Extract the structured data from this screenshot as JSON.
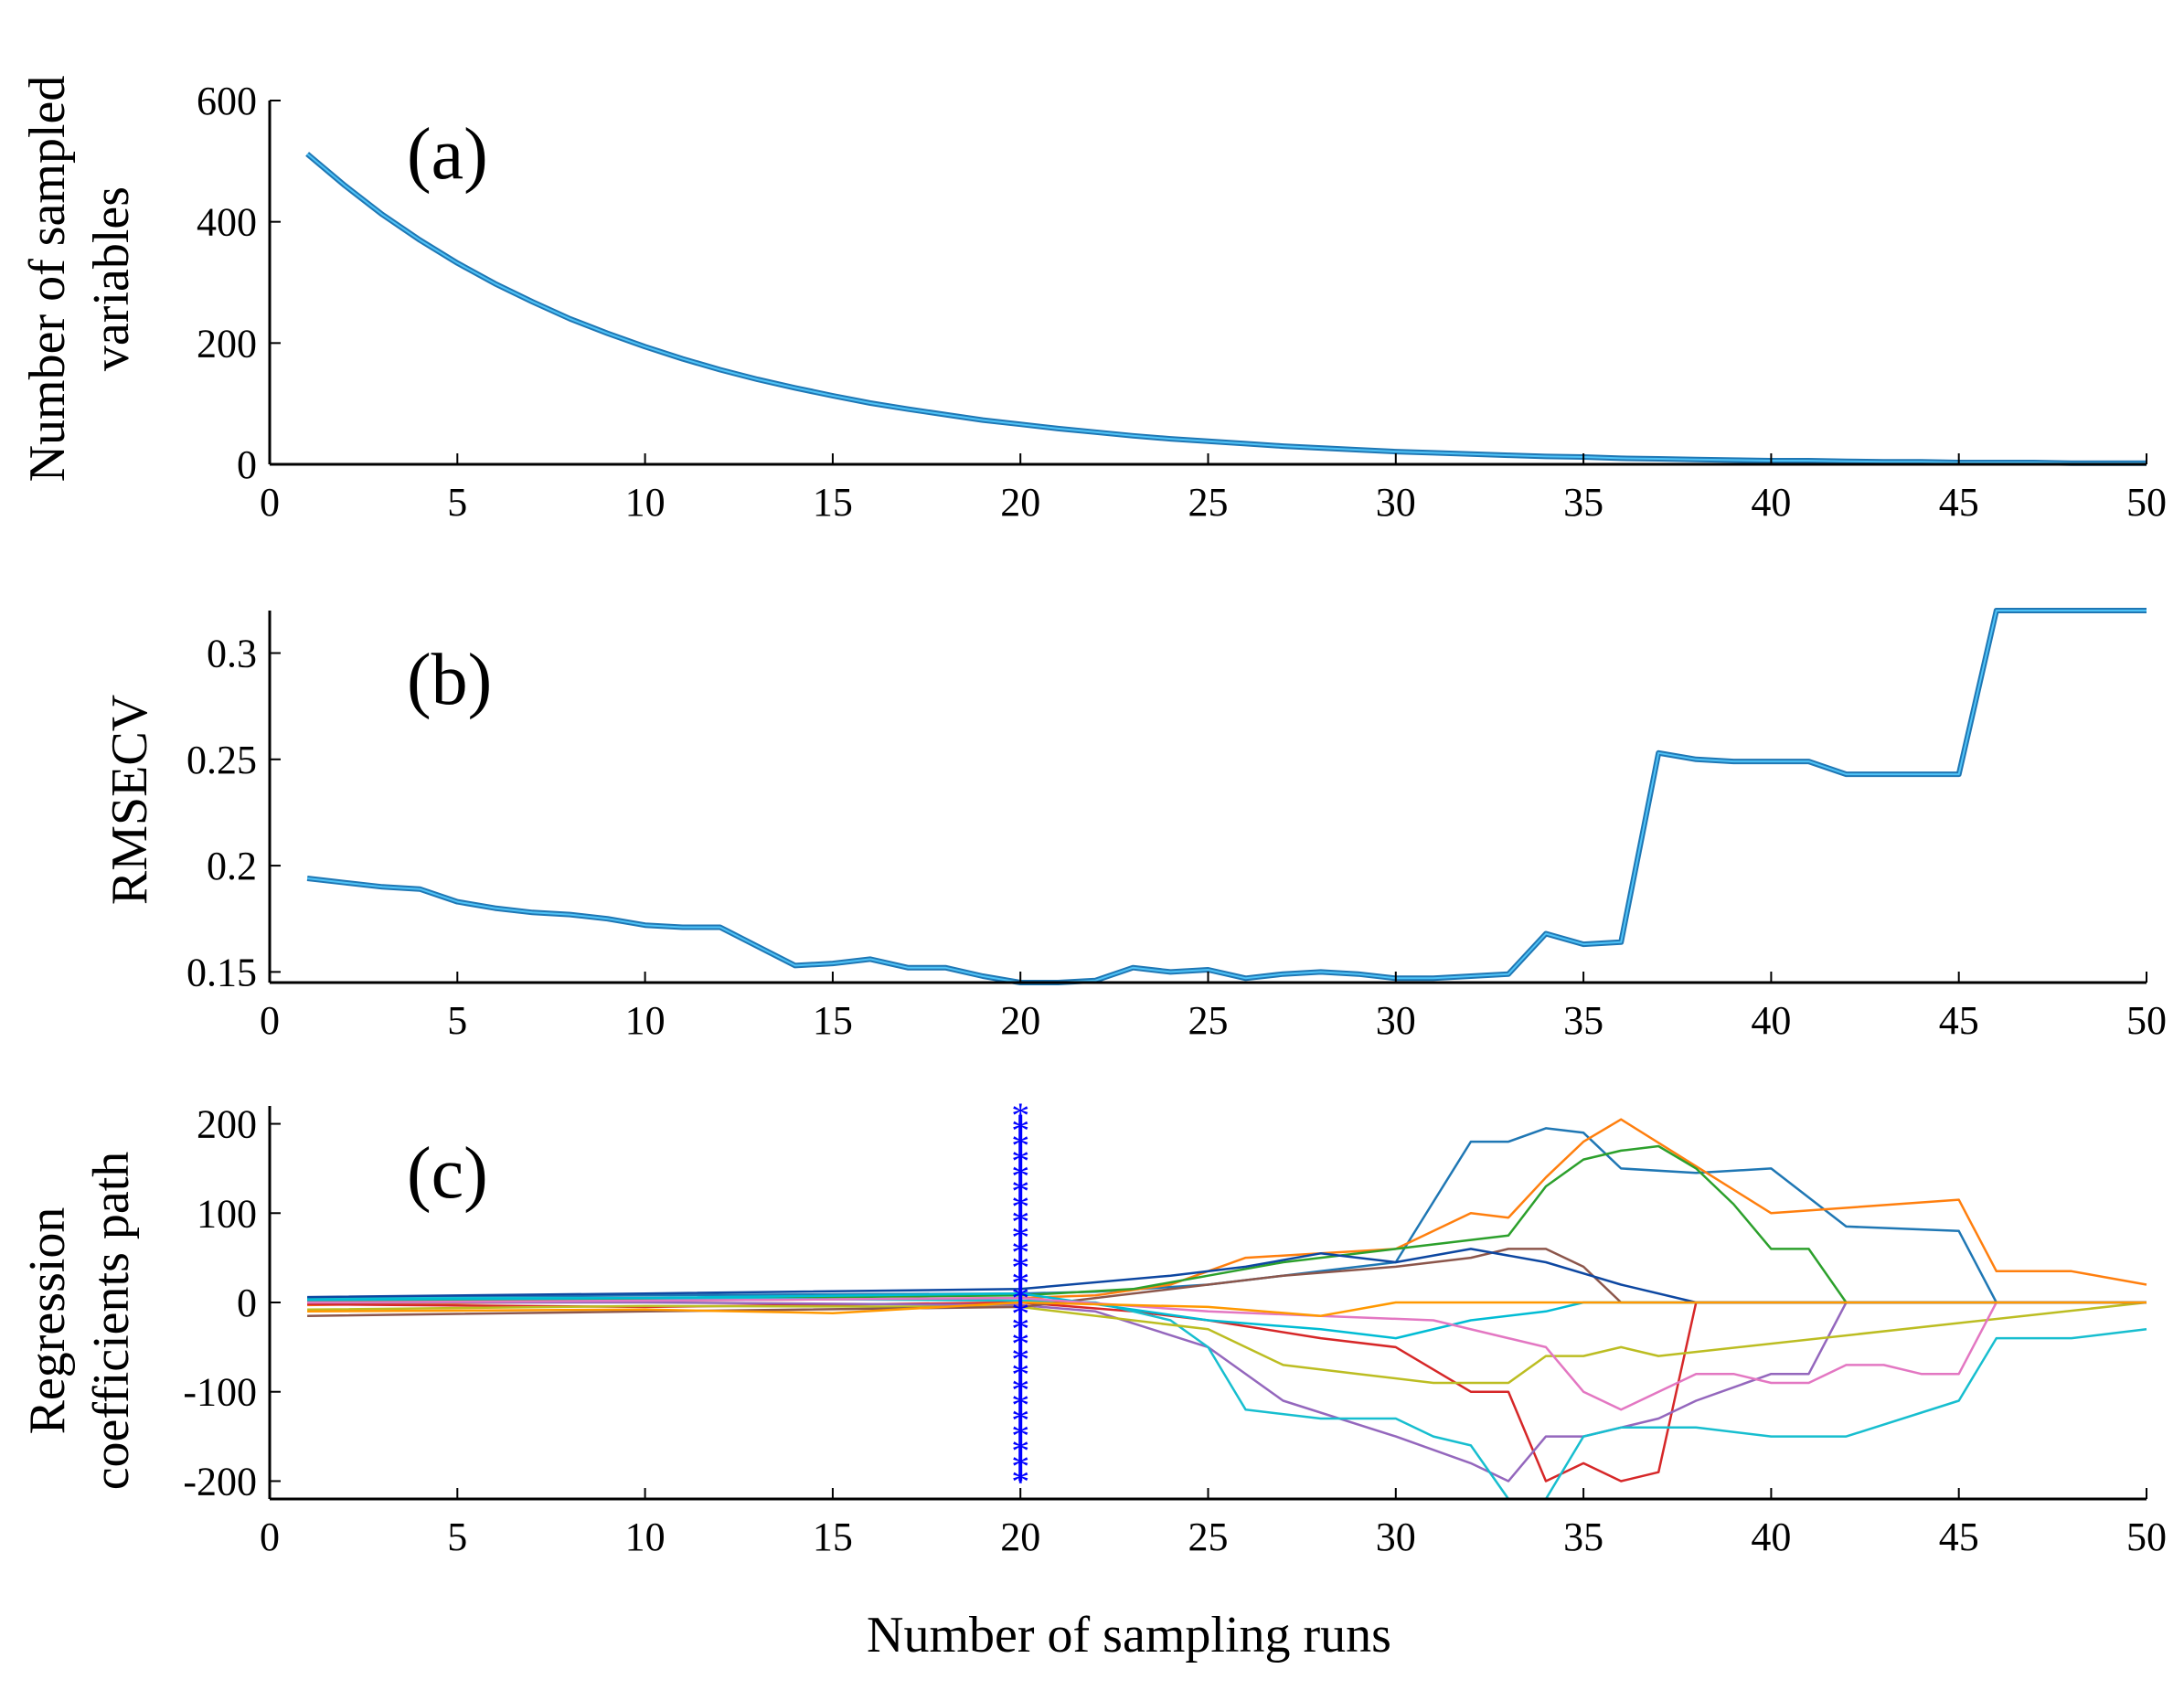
{
  "xlabel": "Number of sampling runs",
  "colors": {
    "axis": "#000000",
    "main_line": "#1f77b4",
    "main_line_highlight": "#4fc3f7",
    "marker": "#0000ff",
    "path_palette": [
      "#1f77b4",
      "#ff7f0e",
      "#2ca02c",
      "#d62728",
      "#9467bd",
      "#17becf",
      "#bcbd22",
      "#8c564b",
      "#00bcd4",
      "#e377c2",
      "#0d47a1",
      "#ff9800"
    ]
  },
  "chart_data": [
    {
      "type": "line",
      "panel": "(a)",
      "ylabel": [
        "Number of sampled",
        "variables"
      ],
      "xlim": [
        0,
        50
      ],
      "ylim": [
        0,
        600
      ],
      "xticks": [
        0,
        5,
        10,
        15,
        20,
        25,
        30,
        35,
        40,
        45,
        50
      ],
      "yticks": [
        0,
        200,
        400,
        600
      ],
      "series": [
        {
          "name": "Number of sampled variables",
          "x": [
            1,
            2,
            3,
            4,
            5,
            6,
            7,
            8,
            9,
            10,
            11,
            12,
            13,
            14,
            15,
            16,
            17,
            18,
            19,
            20,
            21,
            22,
            23,
            24,
            25,
            26,
            27,
            28,
            29,
            30,
            31,
            32,
            33,
            34,
            35,
            36,
            37,
            38,
            39,
            40,
            41,
            42,
            43,
            44,
            45,
            46,
            47,
            48,
            49,
            50
          ],
          "values": [
            512,
            460,
            412,
            370,
            332,
            298,
            268,
            240,
            216,
            194,
            174,
            156,
            140,
            126,
            113,
            101,
            91,
            82,
            73,
            66,
            59,
            53,
            47,
            42,
            38,
            34,
            30,
            27,
            24,
            21,
            19,
            17,
            15,
            13,
            12,
            10,
            9,
            8,
            7,
            6,
            6,
            5,
            4,
            4,
            3,
            3,
            3,
            2,
            2,
            2
          ]
        }
      ]
    },
    {
      "type": "line",
      "panel": "(b)",
      "ylabel": [
        "RMSECV"
      ],
      "xlim": [
        0,
        50
      ],
      "ylim": [
        0.145,
        0.32
      ],
      "xticks": [
        0,
        5,
        10,
        15,
        20,
        25,
        30,
        35,
        40,
        45,
        50
      ],
      "yticks": [
        0.15,
        0.2,
        0.25,
        0.3
      ],
      "ytick_labels": [
        "0.15",
        "0.2",
        "0.25",
        "0.3"
      ],
      "series": [
        {
          "name": "RMSECV",
          "x": [
            1,
            2,
            3,
            4,
            5,
            6,
            7,
            8,
            9,
            10,
            11,
            12,
            13,
            14,
            15,
            16,
            17,
            18,
            19,
            20,
            21,
            22,
            23,
            24,
            25,
            26,
            27,
            28,
            29,
            30,
            31,
            32,
            33,
            34,
            35,
            36,
            37,
            38,
            39,
            40,
            41,
            42,
            43,
            44,
            45,
            46,
            47,
            48,
            49,
            50
          ],
          "values": [
            0.194,
            0.192,
            0.19,
            0.189,
            0.183,
            0.18,
            0.178,
            0.177,
            0.175,
            0.172,
            0.171,
            0.171,
            0.162,
            0.153,
            0.154,
            0.156,
            0.152,
            0.152,
            0.148,
            0.145,
            0.145,
            0.146,
            0.152,
            0.15,
            0.151,
            0.147,
            0.149,
            0.15,
            0.149,
            0.147,
            0.147,
            0.148,
            0.149,
            0.168,
            0.163,
            0.164,
            0.253,
            0.25,
            0.249,
            0.249,
            0.249,
            0.243,
            0.243,
            0.243,
            0.243,
            0.32,
            0.32,
            0.32,
            0.32,
            0.32
          ]
        }
      ]
    },
    {
      "type": "line",
      "panel": "(c)",
      "ylabel": [
        "Regression",
        "coefficients path"
      ],
      "xlim": [
        0,
        50
      ],
      "ylim": [
        -220,
        220
      ],
      "xticks": [
        0,
        5,
        10,
        15,
        20,
        25,
        30,
        35,
        40,
        45,
        50
      ],
      "yticks": [
        -200,
        -100,
        0,
        100,
        200
      ],
      "marker_line": {
        "x": 20,
        "y_from": -200,
        "y_to": 210,
        "marker": "*"
      },
      "series": [
        {
          "name": "path-1",
          "x": [
            1,
            10,
            20,
            22,
            25,
            28,
            30,
            32,
            33,
            34,
            35,
            36,
            38,
            40,
            42,
            45,
            46,
            50
          ],
          "values": [
            5,
            8,
            10,
            12,
            20,
            35,
            45,
            180,
            180,
            195,
            190,
            150,
            145,
            150,
            85,
            80,
            0,
            0
          ]
        },
        {
          "name": "path-2",
          "x": [
            1,
            10,
            20,
            22,
            24,
            26,
            28,
            30,
            32,
            33,
            34,
            35,
            36,
            40,
            45,
            46,
            48,
            50
          ],
          "values": [
            -3,
            2,
            5,
            8,
            20,
            50,
            55,
            60,
            100,
            95,
            140,
            180,
            205,
            100,
            115,
            35,
            35,
            20
          ]
        },
        {
          "name": "path-3",
          "x": [
            1,
            10,
            20,
            23,
            25,
            27,
            30,
            32,
            33,
            34,
            35,
            36,
            37,
            38,
            39,
            40,
            41,
            42,
            45,
            50
          ],
          "values": [
            2,
            4,
            8,
            15,
            30,
            45,
            60,
            70,
            75,
            130,
            160,
            170,
            175,
            150,
            110,
            60,
            60,
            0,
            0,
            0
          ]
        },
        {
          "name": "path-4",
          "x": [
            1,
            10,
            20,
            23,
            25,
            28,
            30,
            32,
            33,
            34,
            35,
            36,
            37,
            38,
            50
          ],
          "values": [
            -2,
            -5,
            0,
            -10,
            -20,
            -40,
            -50,
            -100,
            -100,
            -200,
            -180,
            -200,
            -190,
            0,
            0
          ]
        },
        {
          "name": "path-5",
          "x": [
            1,
            10,
            20,
            22,
            25,
            27,
            30,
            32,
            33,
            34,
            35,
            36,
            37,
            38,
            40,
            41,
            42,
            43,
            45,
            46,
            48,
            50
          ],
          "values": [
            0,
            0,
            -3,
            -10,
            -50,
            -110,
            -150,
            -180,
            -200,
            -150,
            -150,
            -140,
            -130,
            -110,
            -80,
            -80,
            0,
            0,
            0,
            0,
            0,
            0
          ]
        },
        {
          "name": "path-6",
          "x": [
            1,
            10,
            20,
            22,
            24,
            25,
            26,
            28,
            30,
            31,
            32,
            33,
            34,
            35,
            36,
            38,
            40,
            42,
            45,
            46,
            48,
            50
          ],
          "values": [
            5,
            5,
            2,
            0,
            -20,
            -50,
            -120,
            -130,
            -130,
            -150,
            -160,
            -220,
            -220,
            -150,
            -140,
            -140,
            -150,
            -150,
            -110,
            -40,
            -40,
            -30
          ]
        },
        {
          "name": "path-7",
          "x": [
            1,
            10,
            20,
            25,
            27,
            29,
            31,
            33,
            34,
            35,
            36,
            37,
            50
          ],
          "values": [
            -8,
            -4,
            -5,
            -30,
            -70,
            -80,
            -90,
            -90,
            -60,
            -60,
            -50,
            -60,
            0
          ]
        },
        {
          "name": "path-8",
          "x": [
            1,
            10,
            20,
            25,
            27,
            30,
            32,
            33,
            34,
            35,
            36,
            50
          ],
          "values": [
            -15,
            -10,
            -5,
            20,
            30,
            40,
            50,
            60,
            60,
            40,
            0,
            0
          ]
        },
        {
          "name": "path-9",
          "x": [
            1,
            10,
            20,
            25,
            28,
            30,
            32,
            34,
            35,
            36,
            50
          ],
          "values": [
            3,
            5,
            10,
            -20,
            -30,
            -40,
            -20,
            -10,
            0,
            0,
            0
          ]
        },
        {
          "name": "path-10",
          "x": [
            1,
            10,
            20,
            25,
            28,
            31,
            33,
            34,
            35,
            36,
            38,
            39,
            40,
            41,
            42,
            43,
            44,
            45,
            46,
            50
          ],
          "values": [
            0,
            2,
            5,
            -10,
            -15,
            -20,
            -40,
            -50,
            -100,
            -120,
            -80,
            -80,
            -90,
            -90,
            -70,
            -70,
            -80,
            -80,
            0,
            0
          ]
        },
        {
          "name": "path-11",
          "x": [
            1,
            10,
            20,
            24,
            26,
            28,
            30,
            32,
            34,
            36,
            38,
            50
          ],
          "values": [
            6,
            10,
            15,
            30,
            40,
            55,
            45,
            60,
            45,
            20,
            0,
            0
          ]
        },
        {
          "name": "path-12",
          "x": [
            1,
            10,
            15,
            20,
            25,
            28,
            30,
            35,
            50
          ],
          "values": [
            -10,
            -8,
            -12,
            0,
            -5,
            -15,
            0,
            0,
            0
          ]
        }
      ]
    }
  ]
}
